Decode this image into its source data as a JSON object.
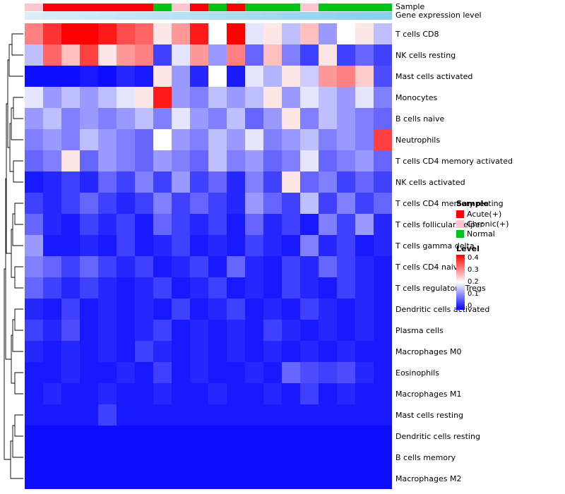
{
  "annotation_labels": {
    "sample": "Sample",
    "expression": "Gene expression level"
  },
  "annotation_colors": {
    "Acute(+)": "#fb0007",
    "Chronic(+)": "#fec5d1",
    "Normal": "#00c317"
  },
  "expression_gradient": [
    "#d9eef9",
    "#86cfef"
  ],
  "column_annotation": {
    "sample": [
      "Chronic(+)",
      "Acute(+)",
      "Acute(+)",
      "Acute(+)",
      "Acute(+)",
      "Acute(+)",
      "Acute(+)",
      "Normal",
      "Chronic(+)",
      "Acute(+)",
      "Normal",
      "Acute(+)",
      "Normal",
      "Normal",
      "Normal",
      "Chronic(+)",
      "Normal",
      "Normal",
      "Normal",
      "Normal"
    ]
  },
  "legend": {
    "sample_title": "Sample",
    "entries": [
      {
        "label": "Acute(+)",
        "color": "#fb0007"
      },
      {
        "label": "Chronic(+)",
        "color": "#fec5d1"
      },
      {
        "label": "Normal",
        "color": "#00c317"
      }
    ],
    "level_title": "Level",
    "level_ticks": [
      "0.4",
      "0.3",
      "0.2",
      "0.1",
      "0"
    ]
  },
  "chart_data": {
    "type": "heatmap",
    "title": "",
    "xlabel": "",
    "ylabel": "",
    "vmin": 0,
    "vmax": 0.4,
    "colormap": [
      "#0000ff",
      "#ffffff",
      "#ff0000"
    ],
    "n_columns": 20,
    "rows": [
      "T cells CD8",
      "NK cells resting",
      "Mast cells activated",
      "Monocytes",
      "B cells naive",
      "Neutrophils",
      "T cells CD4 memory activated",
      "NK cells activated",
      "T cells CD4 memory resting",
      "T cells follicular helper",
      "T cells gamma delta",
      "T cells CD4 naive",
      "T cells regulatory  Tregs",
      "Dendritic cells activated",
      "Plasma cells",
      "Macrophages M0",
      "Eosinophils",
      "Macrophages M1",
      "Mast cells resting",
      "Dendritic cells resting",
      "B cells memory",
      "Macrophages M2"
    ],
    "values": [
      [
        0.3,
        0.36,
        0.4,
        0.4,
        0.38,
        0.34,
        0.32,
        0.22,
        0.28,
        0.38,
        0.2,
        0.4,
        0.18,
        0.22,
        0.15,
        0.25,
        0.12,
        0.2,
        0.22,
        0.15
      ],
      [
        0.15,
        0.32,
        0.25,
        0.35,
        0.22,
        0.28,
        0.3,
        0.05,
        0.18,
        0.28,
        0.12,
        0.3,
        0.08,
        0.25,
        0.1,
        0.05,
        0.22,
        0.05,
        0.08,
        0.05
      ],
      [
        0.01,
        0.01,
        0.01,
        0.02,
        0.01,
        0.03,
        0.02,
        0.22,
        0.12,
        0.03,
        0.2,
        0.02,
        0.18,
        0.14,
        0.22,
        0.16,
        0.28,
        0.3,
        0.24,
        0.06
      ],
      [
        0.18,
        0.12,
        0.15,
        0.12,
        0.15,
        0.18,
        0.22,
        0.38,
        0.12,
        0.1,
        0.15,
        0.12,
        0.15,
        0.22,
        0.12,
        0.18,
        0.15,
        0.12,
        0.18,
        0.1
      ],
      [
        0.12,
        0.15,
        0.1,
        0.12,
        0.1,
        0.12,
        0.15,
        0.1,
        0.18,
        0.12,
        0.1,
        0.15,
        0.08,
        0.12,
        0.22,
        0.1,
        0.15,
        0.12,
        0.1,
        0.08
      ],
      [
        0.1,
        0.12,
        0.1,
        0.15,
        0.12,
        0.1,
        0.08,
        0.2,
        0.12,
        0.1,
        0.15,
        0.12,
        0.18,
        0.1,
        0.12,
        0.15,
        0.1,
        0.12,
        0.1,
        0.35
      ],
      [
        0.08,
        0.1,
        0.22,
        0.08,
        0.12,
        0.1,
        0.08,
        0.12,
        0.1,
        0.08,
        0.15,
        0.1,
        0.12,
        0.08,
        0.1,
        0.18,
        0.08,
        0.1,
        0.12,
        0.08
      ],
      [
        0.02,
        0.03,
        0.05,
        0.03,
        0.08,
        0.05,
        0.1,
        0.05,
        0.12,
        0.05,
        0.08,
        0.03,
        0.1,
        0.05,
        0.22,
        0.08,
        0.1,
        0.05,
        0.08,
        0.05
      ],
      [
        0.05,
        0.03,
        0.05,
        0.08,
        0.05,
        0.03,
        0.05,
        0.1,
        0.05,
        0.08,
        0.05,
        0.03,
        0.12,
        0.08,
        0.05,
        0.15,
        0.05,
        0.1,
        0.05,
        0.08
      ],
      [
        0.08,
        0.03,
        0.02,
        0.05,
        0.03,
        0.05,
        0.02,
        0.08,
        0.05,
        0.03,
        0.05,
        0.02,
        0.08,
        0.03,
        0.05,
        0.02,
        0.1,
        0.05,
        0.12,
        0.03
      ],
      [
        0.12,
        0.02,
        0.02,
        0.03,
        0.02,
        0.05,
        0.02,
        0.03,
        0.05,
        0.02,
        0.03,
        0.02,
        0.05,
        0.03,
        0.02,
        0.1,
        0.03,
        0.05,
        0.02,
        0.03
      ],
      [
        0.1,
        0.08,
        0.05,
        0.08,
        0.05,
        0.03,
        0.05,
        0.02,
        0.03,
        0.05,
        0.02,
        0.08,
        0.03,
        0.02,
        0.05,
        0.03,
        0.08,
        0.05,
        0.03,
        0.02
      ],
      [
        0.08,
        0.05,
        0.03,
        0.05,
        0.03,
        0.02,
        0.03,
        0.05,
        0.02,
        0.03,
        0.05,
        0.02,
        0.03,
        0.02,
        0.05,
        0.03,
        0.02,
        0.05,
        0.03,
        0.02
      ],
      [
        0.03,
        0.02,
        0.05,
        0.02,
        0.03,
        0.02,
        0.03,
        0.02,
        0.05,
        0.02,
        0.03,
        0.05,
        0.02,
        0.03,
        0.02,
        0.05,
        0.03,
        0.02,
        0.03,
        0.02
      ],
      [
        0.05,
        0.03,
        0.06,
        0.02,
        0.03,
        0.02,
        0.03,
        0.05,
        0.02,
        0.03,
        0.02,
        0.03,
        0.02,
        0.05,
        0.03,
        0.02,
        0.03,
        0.02,
        0.03,
        0.02
      ],
      [
        0.03,
        0.02,
        0.03,
        0.02,
        0.03,
        0.02,
        0.05,
        0.03,
        0.02,
        0.03,
        0.02,
        0.03,
        0.02,
        0.03,
        0.02,
        0.03,
        0.02,
        0.03,
        0.02,
        0.02
      ],
      [
        0.02,
        0.02,
        0.03,
        0.02,
        0.02,
        0.03,
        0.02,
        0.05,
        0.02,
        0.03,
        0.02,
        0.02,
        0.03,
        0.02,
        0.08,
        0.06,
        0.05,
        0.06,
        0.03,
        0.02
      ],
      [
        0.02,
        0.03,
        0.02,
        0.02,
        0.03,
        0.02,
        0.02,
        0.03,
        0.02,
        0.02,
        0.03,
        0.02,
        0.02,
        0.03,
        0.02,
        0.05,
        0.02,
        0.03,
        0.02,
        0.02
      ],
      [
        0.02,
        0.02,
        0.02,
        0.02,
        0.05,
        0.02,
        0.02,
        0.02,
        0.02,
        0.02,
        0.02,
        0.02,
        0.02,
        0.02,
        0.02,
        0.02,
        0.02,
        0.02,
        0.02,
        0.02
      ],
      [
        0.01,
        0.01,
        0.01,
        0.01,
        0.01,
        0.01,
        0.01,
        0.01,
        0.01,
        0.01,
        0.01,
        0.01,
        0.01,
        0.01,
        0.01,
        0.01,
        0.01,
        0.01,
        0.01,
        0.01
      ],
      [
        0.01,
        0.01,
        0.01,
        0.01,
        0.01,
        0.01,
        0.01,
        0.01,
        0.01,
        0.01,
        0.01,
        0.01,
        0.01,
        0.01,
        0.01,
        0.01,
        0.01,
        0.01,
        0.01,
        0.01
      ],
      [
        0.01,
        0.01,
        0.01,
        0.01,
        0.01,
        0.01,
        0.01,
        0.01,
        0.01,
        0.01,
        0.01,
        0.01,
        0.01,
        0.01,
        0.01,
        0.01,
        0.01,
        0.01,
        0.01,
        0.01
      ]
    ]
  }
}
